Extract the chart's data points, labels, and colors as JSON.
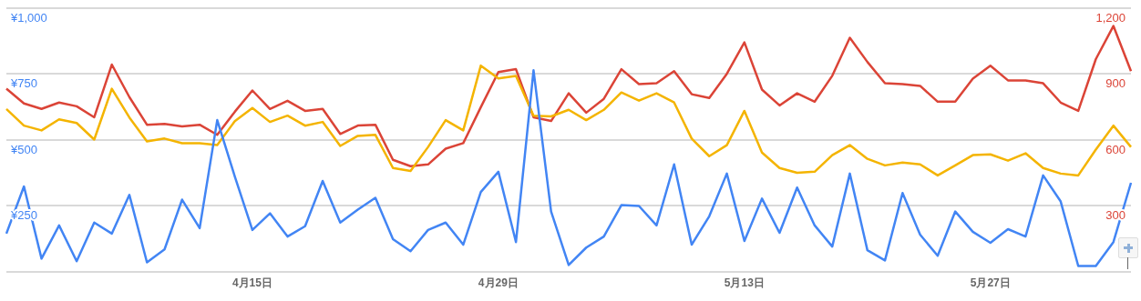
{
  "chart_data": {
    "type": "line",
    "categories": [
      null,
      null,
      null,
      null,
      null,
      null,
      null,
      null,
      null,
      null,
      null,
      null,
      null,
      null,
      "4月15日",
      null,
      null,
      null,
      null,
      null,
      null,
      null,
      null,
      null,
      null,
      null,
      null,
      null,
      "4月29日",
      null,
      null,
      null,
      null,
      null,
      null,
      null,
      null,
      null,
      null,
      null,
      null,
      null,
      "5月13日",
      null,
      null,
      null,
      null,
      null,
      null,
      null,
      null,
      null,
      null,
      null,
      null,
      null,
      "5月27日",
      null,
      null,
      null,
      null,
      null,
      null,
      null,
      null
    ],
    "series": [
      {
        "color": "#4285f4",
        "axis": "y",
        "values": [
          144,
          323,
          49,
          175,
          39,
          186,
          144,
          291,
          35,
          84,
          273,
          165,
          575,
          361,
          158,
          221,
          133,
          172,
          344,
          186,
          235,
          280,
          123,
          77,
          158,
          186,
          102,
          302,
          379,
          112,
          764,
          228,
          25,
          91,
          133,
          252,
          249,
          175,
          407,
          102,
          210,
          372,
          116,
          277,
          147,
          319,
          175,
          95,
          372,
          81,
          42,
          298,
          140,
          60,
          228,
          151,
          109,
          161,
          133,
          365,
          266,
          21,
          21,
          112,
          337
        ]
      },
      {
        "color": "#f4b400",
        "axis": "y",
        "values": [
          617,
          554,
          536,
          578,
          564,
          501,
          694,
          585,
          494,
          505,
          487,
          487,
          480,
          571,
          621,
          568,
          592,
          554,
          568,
          477,
          515,
          519,
          393,
          382,
          473,
          575,
          536,
          782,
          733,
          743,
          592,
          589,
          614,
          575,
          614,
          680,
          649,
          677,
          642,
          505,
          438,
          480,
          610,
          452,
          393,
          375,
          379,
          442,
          480,
          428,
          403,
          414,
          407,
          365,
          403,
          442,
          445,
          421,
          449,
          393,
          372,
          365,
          463,
          554,
          473
        ]
      },
      {
        "color": "#db4437",
        "axis": "y2",
        "values": [
          833,
          766,
          741,
          770,
          753,
          703,
          943,
          795,
          669,
          673,
          661,
          669,
          623,
          728,
          825,
          741,
          778,
          732,
          741,
          627,
          665,
          669,
          509,
          480,
          488,
          560,
          585,
          749,
          909,
          922,
          703,
          686,
          812,
          724,
          787,
          922,
          854,
          858,
          913,
          808,
          791,
          901,
          1044,
          829,
          757,
          812,
          774,
          892,
          1065,
          955,
          858,
          854,
          846,
          774,
          774,
          879,
          938,
          871,
          871,
          858,
          770,
          732,
          968,
          1119,
          913
        ]
      }
    ],
    "ylim": [
      0,
      1000
    ],
    "yticks": [
      {
        "value": 0,
        "label": null
      },
      {
        "value": 250,
        "label": "¥250"
      },
      {
        "value": 500,
        "label": "¥500"
      },
      {
        "value": 750,
        "label": "¥750"
      },
      {
        "value": 1000,
        "label": "¥1,000"
      }
    ],
    "y2lim": [
      0,
      1200
    ],
    "y2ticks": [
      {
        "value": 0,
        "label": null
      },
      {
        "value": 300,
        "label": "300"
      },
      {
        "value": 600,
        "label": "600"
      },
      {
        "value": 900,
        "label": "900"
      },
      {
        "value": 1200,
        "label": "1,200"
      }
    ],
    "grid": "y",
    "marker": "none"
  }
}
